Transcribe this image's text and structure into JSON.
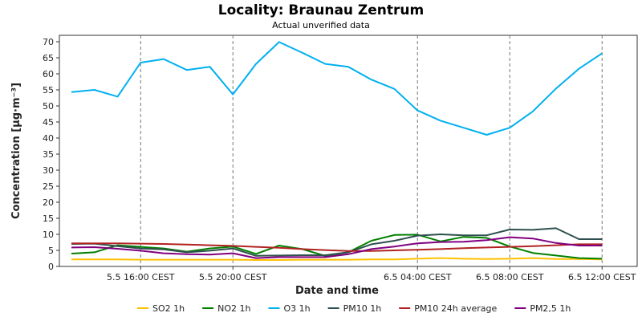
{
  "chart_data": {
    "type": "line",
    "title": "Locality: Braunau Zentrum",
    "subtitle": "Actual unverified data",
    "xlabel": "Date and time",
    "ylabel": "Concentration [µg·m⁻³]",
    "ylim": [
      0,
      72
    ],
    "y_ticks": [
      0,
      5,
      10,
      15,
      20,
      25,
      30,
      35,
      40,
      45,
      50,
      55,
      60,
      65,
      70
    ],
    "x_ticks": [
      {
        "index": 3,
        "label": "5.5 16:00 CEST"
      },
      {
        "index": 7,
        "label": "5.5 20:00 CEST"
      },
      {
        "index": 15,
        "label": "6.5 04:00 CEST"
      },
      {
        "index": 19,
        "label": "6.5 08:00 CEST"
      },
      {
        "index": 23,
        "label": "6.5 12:00 CEST"
      }
    ],
    "x": [
      "5.5 13:00",
      "5.5 14:00",
      "5.5 15:00",
      "5.5 16:00",
      "5.5 17:00",
      "5.5 18:00",
      "5.5 19:00",
      "5.5 20:00",
      "5.5 21:00",
      "5.5 22:00",
      "5.5 23:00",
      "6.5 00:00",
      "6.5 01:00",
      "6.5 02:00",
      "6.5 03:00",
      "6.5 04:00",
      "6.5 05:00",
      "6.5 06:00",
      "6.5 07:00",
      "6.5 08:00",
      "6.5 09:00",
      "6.5 10:00",
      "6.5 11:00",
      "6.5 12:00"
    ],
    "grid": {
      "x": true,
      "y": false
    },
    "legend_position": "bottom",
    "series": [
      {
        "name": "SO2 1h",
        "color": "#ffc000",
        "values": [
          2.2,
          2.2,
          2.2,
          2.1,
          2.1,
          2.1,
          2.1,
          2.1,
          2.0,
          2.0,
          2.1,
          2.1,
          2.1,
          2.2,
          2.2,
          2.4,
          2.6,
          2.4,
          2.3,
          2.4,
          2.6,
          2.3,
          2.3,
          2.2
        ]
      },
      {
        "name": "NO2 1h",
        "color": "#008000",
        "values": [
          4.0,
          4.4,
          6.6,
          6.1,
          5.6,
          4.6,
          5.6,
          6.2,
          3.9,
          6.5,
          5.4,
          3.3,
          4.4,
          8.0,
          9.8,
          9.9,
          7.8,
          9.2,
          8.9,
          6.2,
          4.2,
          3.4,
          2.6,
          2.4
        ]
      },
      {
        "name": "O3 1h",
        "color": "#00b0f0",
        "values": [
          54.3,
          55.0,
          52.9,
          63.5,
          64.6,
          61.2,
          62.2,
          53.6,
          63.1,
          69.9,
          66.6,
          63.1,
          62.2,
          58.2,
          55.3,
          48.6,
          45.4,
          43.2,
          41.0,
          43.2,
          48.3,
          55.4,
          61.6,
          66.4
        ]
      },
      {
        "name": "PM10 1h",
        "color": "#2f4f4f",
        "values": [
          7.0,
          7.1,
          6.3,
          5.6,
          5.3,
          4.4,
          4.9,
          5.6,
          3.3,
          3.4,
          3.5,
          3.5,
          4.4,
          6.9,
          8.0,
          9.6,
          10.0,
          9.7,
          9.7,
          11.5,
          11.4,
          11.9,
          8.5,
          8.5
        ]
      },
      {
        "name": "PM10 24h average",
        "color": "#b22222",
        "values": [
          7.2,
          7.2,
          7.2,
          7.1,
          7.0,
          6.8,
          6.6,
          6.4,
          6.1,
          5.8,
          5.4,
          5.1,
          4.8,
          4.8,
          5.0,
          5.2,
          5.4,
          5.7,
          5.9,
          6.1,
          6.3,
          6.6,
          6.9,
          6.9
        ]
      },
      {
        "name": "PM2,5 1h",
        "color": "#800080",
        "values": [
          5.9,
          6.0,
          5.5,
          4.9,
          4.1,
          3.8,
          3.7,
          4.1,
          2.6,
          2.9,
          2.9,
          2.9,
          3.8,
          5.4,
          6.2,
          7.2,
          7.6,
          7.7,
          8.2,
          9.1,
          8.7,
          7.3,
          6.5,
          6.5
        ]
      }
    ]
  }
}
